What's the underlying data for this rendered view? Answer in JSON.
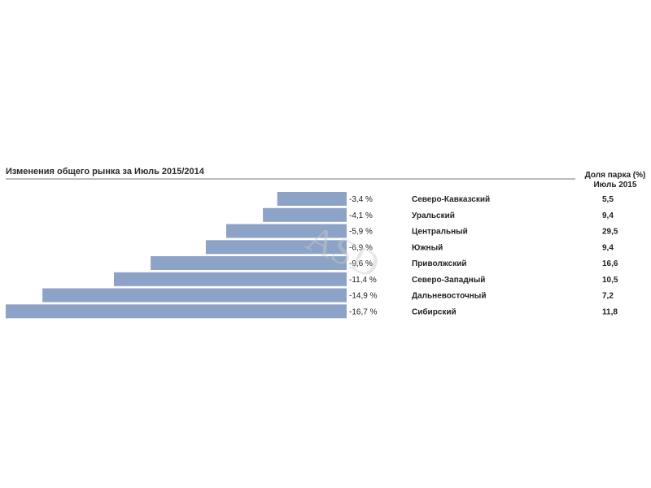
{
  "chart_data": {
    "type": "bar",
    "orientation": "horizontal",
    "title": "Изменения общего рынка за Июль 2015/2014",
    "column_header_line1": "Доля парка (%)",
    "column_header_line2": "Июль 2015",
    "bar_color": "#8ca3c7",
    "categories": [
      "Северо-Кавказский",
      "Уральский",
      "Центральный",
      "Южный",
      "Приволжский",
      "Северо-Западный",
      "Дальневосточный",
      "Сибирский"
    ],
    "values": [
      -3.4,
      -4.1,
      -5.9,
      -6.9,
      -9.6,
      -11.4,
      -14.9,
      -16.7
    ],
    "value_labels": [
      "-3,4 %",
      "-4,1 %",
      "-5,9 %",
      "-6,9 %",
      "-9,6 %",
      "-11,4 %",
      "-14,9 %",
      "-16,7 %"
    ],
    "share_labels": [
      "5,5",
      "9,4",
      "29,5",
      "9,4",
      "16,6",
      "10,5",
      "7,2",
      "11,8"
    ],
    "xlim": [
      -16.7,
      0
    ],
    "grid": false,
    "watermark": "ASD"
  }
}
